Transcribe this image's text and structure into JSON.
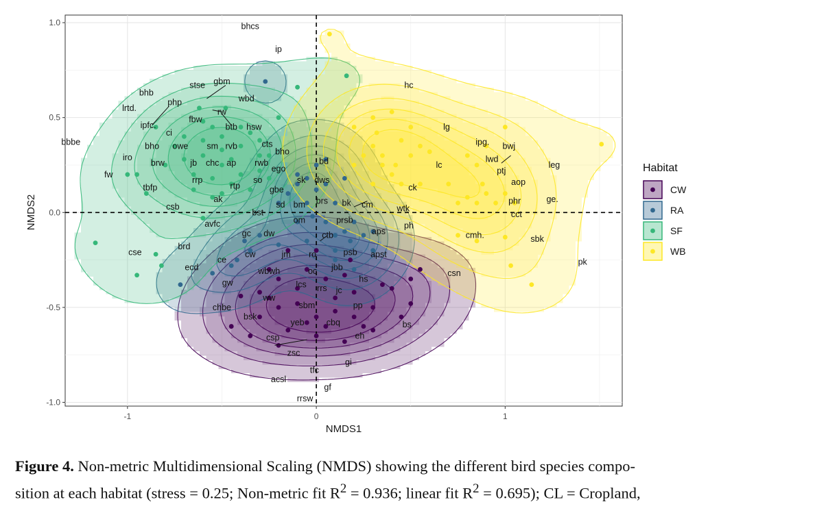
{
  "chart_data": {
    "type": "scatter",
    "title": "",
    "xlabel": "NMDS1",
    "ylabel": "NMDS2",
    "xlim": [
      -1.33,
      1.62
    ],
    "ylim": [
      -1.02,
      1.04
    ],
    "xticks": [
      -1,
      0,
      1
    ],
    "xtick_labels": [
      "-1",
      "0",
      "1"
    ],
    "yticks": [
      -1.0,
      -0.5,
      0.0,
      0.5,
      1.0
    ],
    "ytick_labels": [
      "-1.0",
      "-0.5",
      "0.0",
      "0.5",
      "1.0"
    ],
    "grid": true,
    "reference_lines": {
      "x": 0,
      "y": 0,
      "style": "dashed"
    },
    "legend": {
      "title": "Habitat",
      "placement": "right",
      "entries": [
        {
          "label": "CW",
          "color": "#440154"
        },
        {
          "label": "RA",
          "color": "#31688e"
        },
        {
          "label": "SF",
          "color": "#35b779"
        },
        {
          "label": "WB",
          "color": "#fde725"
        }
      ]
    },
    "series": [
      {
        "name": "CW",
        "color": "#440154",
        "points": [
          [
            -0.4,
            -0.44
          ],
          [
            -0.3,
            -0.42
          ],
          [
            -0.2,
            -0.5
          ],
          [
            -0.1,
            -0.48
          ],
          [
            0,
            -0.55
          ],
          [
            0.1,
            -0.45
          ],
          [
            0.2,
            -0.42
          ],
          [
            0.25,
            -0.6
          ],
          [
            0.3,
            -0.5
          ],
          [
            0.4,
            -0.4
          ],
          [
            0.5,
            -0.35
          ],
          [
            0.55,
            -0.3
          ],
          [
            0.5,
            -0.48
          ],
          [
            -0.45,
            -0.6
          ],
          [
            -0.35,
            -0.65
          ],
          [
            -0.2,
            -0.7
          ],
          [
            0,
            -0.65
          ],
          [
            0.15,
            -0.68
          ],
          [
            0.3,
            -0.62
          ],
          [
            -0.1,
            -0.4
          ],
          [
            0.05,
            -0.35
          ],
          [
            0.15,
            -0.33
          ],
          [
            -0.25,
            -0.45
          ],
          [
            -0.05,
            -0.58
          ],
          [
            0.35,
            -0.38
          ],
          [
            -0.15,
            -0.62
          ],
          [
            0.2,
            -0.55
          ],
          [
            -0.3,
            -0.55
          ],
          [
            0.05,
            -0.6
          ],
          [
            0.45,
            -0.55
          ],
          [
            -0.2,
            -0.35
          ],
          [
            0.1,
            -0.52
          ],
          [
            -0.15,
            -0.2
          ],
          [
            0.0,
            -0.2
          ],
          [
            -0.05,
            -0.3
          ],
          [
            0.18,
            -0.25
          ],
          [
            -0.25,
            -0.3
          ]
        ]
      },
      {
        "name": "RA",
        "color": "#31688e",
        "points": [
          [
            -0.27,
            0.69
          ],
          [
            -0.15,
            0.1
          ],
          [
            -0.1,
            0.2
          ],
          [
            -0.05,
            0.05
          ],
          [
            0,
            0.12
          ],
          [
            0.05,
            -0.05
          ],
          [
            0.1,
            0.05
          ],
          [
            0.15,
            -0.1
          ],
          [
            0.2,
            -0.05
          ],
          [
            0.25,
            -0.12
          ],
          [
            0.3,
            -0.2
          ],
          [
            0,
            0.25
          ],
          [
            -0.05,
            -0.15
          ],
          [
            0.1,
            -0.2
          ],
          [
            -0.1,
            -0.05
          ],
          [
            -0.2,
            0.05
          ],
          [
            0.05,
            0.28
          ],
          [
            0.1,
            -0.25
          ],
          [
            -0.3,
            -0.12
          ],
          [
            -0.2,
            -0.17
          ],
          [
            0.2,
            -0.3
          ],
          [
            0.15,
            0.18
          ],
          [
            -0.05,
            0.18
          ],
          [
            0.3,
            -0.1
          ],
          [
            -0.38,
            -0.15
          ],
          [
            -0.42,
            -0.25
          ],
          [
            -0.72,
            -0.38
          ],
          [
            -0.55,
            -0.32
          ],
          [
            -0.45,
            -0.28
          ],
          [
            -0.35,
            -0.2
          ],
          [
            0.1,
            -0.12
          ],
          [
            -0.02,
            -0.02
          ],
          [
            0.05,
            0.15
          ],
          [
            0.18,
            -0.15
          ],
          [
            -0.1,
            0.15
          ]
        ]
      },
      {
        "name": "SF",
        "color": "#35b779",
        "points": [
          [
            -0.5,
            0.4
          ],
          [
            -0.4,
            0.35
          ],
          [
            -0.3,
            0.3
          ],
          [
            -0.6,
            0.3
          ],
          [
            -0.7,
            0.28
          ],
          [
            -0.8,
            0.25
          ],
          [
            -0.5,
            0.25
          ],
          [
            -0.4,
            0.2
          ],
          [
            -0.3,
            0.22
          ],
          [
            -0.45,
            0.15
          ],
          [
            -0.55,
            0.18
          ],
          [
            -0.65,
            0.2
          ],
          [
            -0.35,
            0.42
          ],
          [
            -0.55,
            0.45
          ],
          [
            -0.7,
            0.4
          ],
          [
            -0.2,
            0.5
          ],
          [
            -0.1,
            0.66
          ],
          [
            0.16,
            0.72
          ],
          [
            -0.6,
            0.48
          ],
          [
            -0.75,
            0.35
          ],
          [
            -0.85,
            0.45
          ],
          [
            -0.95,
            0.2
          ],
          [
            -0.9,
            0.1
          ],
          [
            -1.0,
            0.2
          ],
          [
            -1.17,
            -0.16
          ],
          [
            -0.95,
            -0.33
          ],
          [
            -0.85,
            -0.22
          ],
          [
            -0.82,
            -0.28
          ],
          [
            -0.6,
            -0.03
          ],
          [
            -0.5,
            0.1
          ],
          [
            -0.45,
            0.28
          ],
          [
            -0.25,
            0.3
          ],
          [
            -0.35,
            0.12
          ],
          [
            -0.6,
            0.38
          ],
          [
            -0.4,
            0.45
          ],
          [
            -0.5,
            0.33
          ],
          [
            -0.3,
            0.38
          ],
          [
            -0.65,
            0.12
          ],
          [
            -0.55,
            0.08
          ],
          [
            -0.48,
            0.55
          ],
          [
            -0.62,
            0.55
          ],
          [
            -0.25,
            0.18
          ]
        ]
      },
      {
        "name": "WB",
        "color": "#fde725",
        "points": [
          [
            0.07,
            0.94
          ],
          [
            0.2,
            0.45
          ],
          [
            0.3,
            0.5
          ],
          [
            0.4,
            0.53
          ],
          [
            0.5,
            0.45
          ],
          [
            0.55,
            0.35
          ],
          [
            0.3,
            0.35
          ],
          [
            0.35,
            0.25
          ],
          [
            0.4,
            0.2
          ],
          [
            0.45,
            0.15
          ],
          [
            0.5,
            0.3
          ],
          [
            0.25,
            0.3
          ],
          [
            0.2,
            0.25
          ],
          [
            0.35,
            0.3
          ],
          [
            0.42,
            0.25
          ],
          [
            0.8,
            0.3
          ],
          [
            0.85,
            0.25
          ],
          [
            0.9,
            0.1
          ],
          [
            0.85,
            0.05
          ],
          [
            0.8,
            0.08
          ],
          [
            0.75,
            0.05
          ],
          [
            0.7,
            0.15
          ],
          [
            1.0,
            0.45
          ],
          [
            1.0,
            0.1
          ],
          [
            1.05,
            0.05
          ],
          [
            1.0,
            -0.13
          ],
          [
            1.03,
            -0.28
          ],
          [
            1.14,
            -0.38
          ],
          [
            1.51,
            0.36
          ],
          [
            0.75,
            -0.12
          ],
          [
            0.85,
            -0.15
          ],
          [
            0.9,
            0.35
          ],
          [
            0.6,
            0.32
          ],
          [
            0.32,
            0.42
          ],
          [
            0.45,
            0.38
          ],
          [
            0.95,
            0.05
          ],
          [
            0.88,
            0.15
          ],
          [
            0.55,
            0.15
          ],
          [
            0.3,
            0.15
          ]
        ]
      }
    ],
    "species_labels": [
      {
        "t": "bhcs",
        "x": -0.35,
        "y": 0.98
      },
      {
        "t": "ip",
        "x": -0.2,
        "y": 0.86
      },
      {
        "t": "hc",
        "x": 0.49,
        "y": 0.67
      },
      {
        "t": "stse",
        "x": -0.63,
        "y": 0.67
      },
      {
        "t": "gbm",
        "x": -0.5,
        "y": 0.69
      },
      {
        "t": "bhb",
        "x": -0.9,
        "y": 0.63
      },
      {
        "t": "wbd",
        "x": -0.37,
        "y": 0.6
      },
      {
        "t": "php",
        "x": -0.75,
        "y": 0.58
      },
      {
        "t": "lrtd.",
        "x": -0.99,
        "y": 0.55
      },
      {
        "t": "rw",
        "x": -0.5,
        "y": 0.53
      },
      {
        "t": "fbw",
        "x": -0.64,
        "y": 0.49
      },
      {
        "t": "btb",
        "x": -0.45,
        "y": 0.45
      },
      {
        "t": "hsw",
        "x": -0.33,
        "y": 0.45
      },
      {
        "t": "ipfc.",
        "x": -0.89,
        "y": 0.46
      },
      {
        "t": "ci",
        "x": -0.78,
        "y": 0.42
      },
      {
        "t": "lg",
        "x": 0.69,
        "y": 0.45
      },
      {
        "t": "ipg.",
        "x": 0.88,
        "y": 0.37
      },
      {
        "t": "bwj",
        "x": 1.02,
        "y": 0.35
      },
      {
        "t": "bbbe",
        "x": -1.3,
        "y": 0.37
      },
      {
        "t": "bho",
        "x": -0.87,
        "y": 0.35
      },
      {
        "t": "owe",
        "x": -0.72,
        "y": 0.35
      },
      {
        "t": "sm",
        "x": -0.55,
        "y": 0.35
      },
      {
        "t": "rvb",
        "x": -0.45,
        "y": 0.35
      },
      {
        "t": "cts",
        "x": -0.26,
        "y": 0.36
      },
      {
        "t": "lwd",
        "x": 0.93,
        "y": 0.28
      },
      {
        "t": "bho",
        "x": -0.18,
        "y": 0.32
      },
      {
        "t": "iro",
        "x": -1.0,
        "y": 0.29
      },
      {
        "t": "brw",
        "x": -0.84,
        "y": 0.26
      },
      {
        "t": "jb",
        "x": -0.65,
        "y": 0.26
      },
      {
        "t": "chc",
        "x": -0.55,
        "y": 0.26
      },
      {
        "t": "ap",
        "x": -0.45,
        "y": 0.26
      },
      {
        "t": "rwb",
        "x": -0.29,
        "y": 0.26
      },
      {
        "t": "bd",
        "x": 0.04,
        "y": 0.27
      },
      {
        "t": "lc",
        "x": 0.65,
        "y": 0.25
      },
      {
        "t": "ego",
        "x": -0.2,
        "y": 0.23
      },
      {
        "t": "leg",
        "x": 1.26,
        "y": 0.25
      },
      {
        "t": "ptj",
        "x": 0.98,
        "y": 0.22
      },
      {
        "t": "fw",
        "x": -1.1,
        "y": 0.2
      },
      {
        "t": "tbfp",
        "x": -0.88,
        "y": 0.13
      },
      {
        "t": "rrp",
        "x": -0.63,
        "y": 0.17
      },
      {
        "t": "so",
        "x": -0.31,
        "y": 0.17
      },
      {
        "t": "sk",
        "x": -0.08,
        "y": 0.17
      },
      {
        "t": "dws",
        "x": 0.03,
        "y": 0.17
      },
      {
        "t": "aop",
        "x": 1.07,
        "y": 0.16
      },
      {
        "t": "rtp",
        "x": -0.43,
        "y": 0.14
      },
      {
        "t": "ck",
        "x": 0.51,
        "y": 0.13
      },
      {
        "t": "gbe",
        "x": -0.21,
        "y": 0.12
      },
      {
        "t": "ak",
        "x": -0.52,
        "y": 0.07
      },
      {
        "t": "phr",
        "x": 1.05,
        "y": 0.06
      },
      {
        "t": "ge.",
        "x": 1.25,
        "y": 0.07
      },
      {
        "t": "brs",
        "x": 0.03,
        "y": 0.06
      },
      {
        "t": "bk",
        "x": 0.16,
        "y": 0.05
      },
      {
        "t": "cm",
        "x": 0.27,
        "y": 0.04
      },
      {
        "t": "csb",
        "x": -0.76,
        "y": 0.03
      },
      {
        "t": "sd",
        "x": -0.19,
        "y": 0.04
      },
      {
        "t": "bm",
        "x": -0.09,
        "y": 0.04
      },
      {
        "t": "wtk",
        "x": 0.46,
        "y": 0.02
      },
      {
        "t": "bst",
        "x": -0.31,
        "y": 0.0
      },
      {
        "t": "cct",
        "x": 1.06,
        "y": -0.01
      },
      {
        "t": "prsb",
        "x": 0.15,
        "y": -0.04
      },
      {
        "t": "om",
        "x": -0.09,
        "y": -0.04
      },
      {
        "t": "avfc",
        "x": -0.55,
        "y": -0.06
      },
      {
        "t": "ph",
        "x": 0.49,
        "y": -0.07
      },
      {
        "t": "aps",
        "x": 0.33,
        "y": -0.1
      },
      {
        "t": "gc",
        "x": -0.37,
        "y": -0.11
      },
      {
        "t": "dw",
        "x": -0.25,
        "y": -0.11
      },
      {
        "t": "ctb",
        "x": 0.06,
        "y": -0.12
      },
      {
        "t": "cmh.",
        "x": 0.84,
        "y": -0.12
      },
      {
        "t": "sbk",
        "x": 1.17,
        "y": -0.14
      },
      {
        "t": "brd",
        "x": -0.7,
        "y": -0.18
      },
      {
        "t": "cse",
        "x": -0.96,
        "y": -0.21
      },
      {
        "t": "cw",
        "x": -0.35,
        "y": -0.22
      },
      {
        "t": "jm",
        "x": -0.16,
        "y": -0.22
      },
      {
        "t": "ro",
        "x": -0.02,
        "y": -0.22
      },
      {
        "t": "psb",
        "x": 0.18,
        "y": -0.21
      },
      {
        "t": "apst",
        "x": 0.33,
        "y": -0.22
      },
      {
        "t": "ce",
        "x": -0.5,
        "y": -0.25
      },
      {
        "t": "pk",
        "x": 1.41,
        "y": -0.26
      },
      {
        "t": "ecd",
        "x": -0.66,
        "y": -0.29
      },
      {
        "t": "wbwh",
        "x": -0.25,
        "y": -0.31
      },
      {
        "t": "oc",
        "x": -0.02,
        "y": -0.31
      },
      {
        "t": "jbb",
        "x": 0.11,
        "y": -0.29
      },
      {
        "t": "csn",
        "x": 0.73,
        "y": -0.32
      },
      {
        "t": "hs",
        "x": 0.25,
        "y": -0.35
      },
      {
        "t": "gw",
        "x": -0.47,
        "y": -0.37
      },
      {
        "t": "lcs",
        "x": -0.08,
        "y": -0.38
      },
      {
        "t": "rrs",
        "x": 0.03,
        "y": -0.4
      },
      {
        "t": "jc",
        "x": 0.12,
        "y": -0.41
      },
      {
        "t": "ww",
        "x": -0.25,
        "y": -0.45
      },
      {
        "t": "chbe",
        "x": -0.5,
        "y": -0.5
      },
      {
        "t": "sbm",
        "x": -0.05,
        "y": -0.49
      },
      {
        "t": "pp",
        "x": 0.22,
        "y": -0.49
      },
      {
        "t": "bsk",
        "x": -0.35,
        "y": -0.55
      },
      {
        "t": "yeb",
        "x": -0.1,
        "y": -0.58
      },
      {
        "t": "cbq",
        "x": 0.09,
        "y": -0.58
      },
      {
        "t": "bs",
        "x": 0.48,
        "y": -0.59
      },
      {
        "t": "csp",
        "x": -0.23,
        "y": -0.66
      },
      {
        "t": "eh",
        "x": 0.23,
        "y": -0.65
      },
      {
        "t": "zsc",
        "x": -0.12,
        "y": -0.74
      },
      {
        "t": "gi",
        "x": 0.17,
        "y": -0.79
      },
      {
        "t": "tfc",
        "x": -0.01,
        "y": -0.83
      },
      {
        "t": "acsl",
        "x": -0.2,
        "y": -0.88
      },
      {
        "t": "gf",
        "x": 0.06,
        "y": -0.92
      },
      {
        "t": "rrsw",
        "x": -0.06,
        "y": -0.98
      }
    ]
  },
  "caption": {
    "label": "Figure 4.",
    "line1": "Non-metric Multidimensional Scaling (NMDS) showing the different bird species compo-",
    "line2": "sition at each habitat (stress = 0.25; Non-metric fit R",
    "sup1": "2",
    "mid": " = 0.936; linear fit R",
    "sup2": "2",
    "end": " = 0.695); CL = Cropland,"
  }
}
